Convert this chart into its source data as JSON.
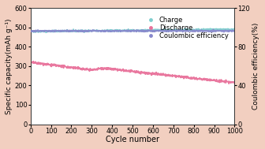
{
  "background_color": "#f2cfc0",
  "plot_bg_color": "#ffffff",
  "xlabel": "Cycle number",
  "ylabel_left": "Specific capacity(mAh g⁻¹)",
  "ylabel_right": "Coulombic efficiency(%)",
  "xlim": [
    0,
    1000
  ],
  "ylim_left": [
    0,
    600
  ],
  "ylim_right": [
    0,
    120
  ],
  "xticks": [
    0,
    100,
    200,
    300,
    400,
    500,
    600,
    700,
    800,
    900,
    1000
  ],
  "yticks_left": [
    0,
    100,
    200,
    300,
    400,
    500,
    600
  ],
  "yticks_right": [
    0,
    40,
    80,
    120
  ],
  "charge_color": "#7ecece",
  "discharge_color": "#e8719a",
  "coulombic_color": "#8888cc",
  "charge_start": 480,
  "charge_end": 490,
  "discharge_start": 320,
  "discharge_mid": 260,
  "discharge_end": 215,
  "coulombic_level": 96.5,
  "n_points": 1000,
  "legend_labels": [
    "Charge",
    "Discharge",
    "Coulombic efficiency"
  ],
  "legend_colors": [
    "#7ecece",
    "#e8719a",
    "#8888cc"
  ],
  "xlabel_fontsize": 7,
  "ylabel_fontsize": 6.5,
  "tick_fontsize": 6,
  "legend_fontsize": 6,
  "line_width": 1.2,
  "figure_width": 3.36,
  "figure_height": 1.89,
  "dpi": 100
}
